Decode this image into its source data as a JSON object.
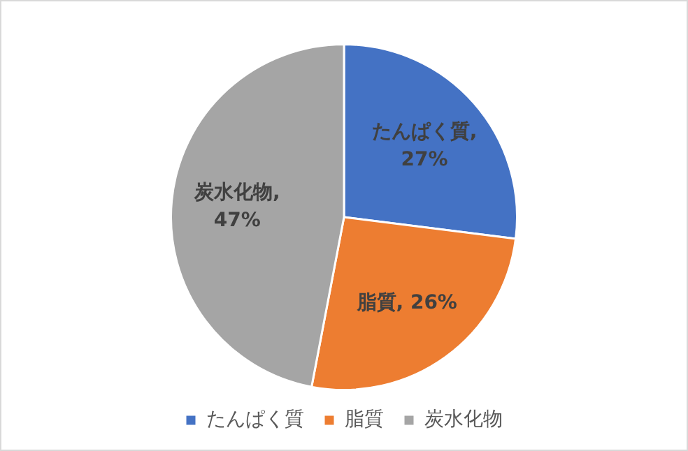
{
  "chart_data": {
    "type": "pie",
    "categories": [
      "たんぱく質",
      "脂質",
      "炭水化物"
    ],
    "values": [
      27,
      26,
      47
    ],
    "colors": [
      "#4472c4",
      "#ed7d31",
      "#a5a5a5"
    ],
    "value_labels": [
      "たんぱく質, 27%",
      "脂質, 26%",
      "炭水化物, 47%"
    ],
    "legend": "bottom"
  }
}
